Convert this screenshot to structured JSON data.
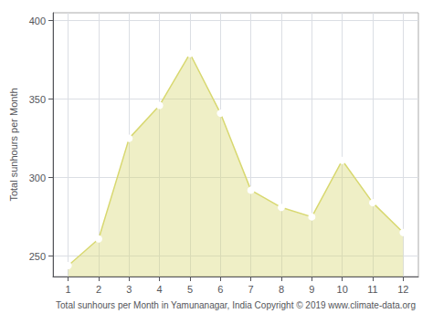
{
  "chart_data": {
    "type": "area",
    "x": [
      1,
      2,
      3,
      4,
      5,
      6,
      7,
      8,
      9,
      10,
      11,
      12
    ],
    "values": [
      244,
      261,
      325,
      346,
      379,
      341,
      292,
      281,
      275,
      311,
      284,
      265
    ],
    "color": "#D8D870",
    "marker": "circle",
    "xlabel": "Total sunhours per Month in Yamunanagar, India Copyright © 2019 www.climate-data.org",
    "ylabel": "Total sunhours per Month",
    "xlim": [
      0.5,
      12.5
    ],
    "xticks": [
      1,
      2,
      3,
      4,
      5,
      6,
      7,
      8,
      9,
      10,
      11,
      12
    ],
    "ylim": [
      237,
      405
    ],
    "yticks": [
      250,
      300,
      350,
      400
    ],
    "grid": true
  }
}
